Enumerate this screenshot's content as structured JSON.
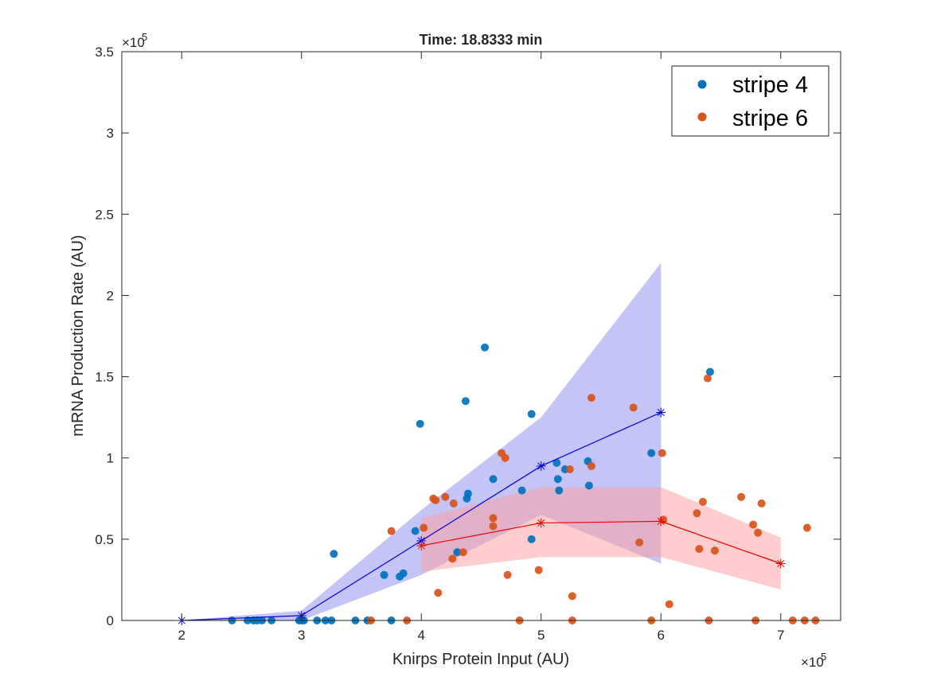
{
  "chart_data": {
    "type": "scatter",
    "title": "Time: 18.8333 min",
    "xlabel": "Knirps Protein Input (AU)",
    "ylabel": "mRNA Production Rate (AU)",
    "x_exponent_label": "×10",
    "x_exponent_power": "5",
    "y_exponent_label": "×10",
    "y_exponent_power": "5",
    "xlim": [
      1.5,
      7.5
    ],
    "ylim": [
      0,
      3.5
    ],
    "xticks": [
      2,
      3,
      4,
      5,
      6,
      7
    ],
    "xtick_labels": [
      "2",
      "3",
      "4",
      "5",
      "6",
      "7"
    ],
    "yticks": [
      0,
      0.5,
      1,
      1.5,
      2,
      2.5,
      3,
      3.5
    ],
    "ytick_labels": [
      "0",
      "0.5",
      "1",
      "1.5",
      "2",
      "2.5",
      "3",
      "3.5"
    ],
    "grid": false,
    "legend_position": "top-right",
    "series": [
      {
        "name": "stripe 4",
        "color": "#0072BD",
        "points": [
          [
            2.42,
            0
          ],
          [
            2.55,
            0
          ],
          [
            2.6,
            0
          ],
          [
            2.63,
            0
          ],
          [
            2.67,
            0
          ],
          [
            2.75,
            0
          ],
          [
            2.98,
            0
          ],
          [
            3.0,
            0
          ],
          [
            3.02,
            0
          ],
          [
            3.13,
            0
          ],
          [
            3.2,
            0
          ],
          [
            3.25,
            0
          ],
          [
            3.45,
            0
          ],
          [
            3.55,
            0
          ],
          [
            3.75,
            0
          ],
          [
            3.27,
            0.41
          ],
          [
            3.69,
            0.28
          ],
          [
            3.82,
            0.27
          ],
          [
            3.85,
            0.29
          ],
          [
            3.95,
            0.55
          ],
          [
            3.99,
            1.21
          ],
          [
            4.37,
            1.35
          ],
          [
            4.38,
            0.75
          ],
          [
            4.39,
            0.78
          ],
          [
            4.3,
            0.42
          ],
          [
            4.53,
            1.68
          ],
          [
            4.6,
            0.87
          ],
          [
            4.84,
            0.8
          ],
          [
            4.92,
            1.27
          ],
          [
            4.92,
            0.5
          ],
          [
            5.13,
            0.97
          ],
          [
            5.14,
            0.87
          ],
          [
            5.15,
            0.8
          ],
          [
            5.2,
            0.93
          ],
          [
            5.39,
            0.98
          ],
          [
            5.4,
            0.83
          ],
          [
            5.92,
            1.03
          ],
          [
            6.41,
            1.53
          ]
        ]
      },
      {
        "name": "stripe 6",
        "color": "#D95319",
        "points": [
          [
            3.58,
            0
          ],
          [
            3.75,
            0.55
          ],
          [
            3.88,
            0
          ],
          [
            4.02,
            0.57
          ],
          [
            4.1,
            0.75
          ],
          [
            4.12,
            0.74
          ],
          [
            4.14,
            0.17
          ],
          [
            4.2,
            0.76
          ],
          [
            4.26,
            0.38
          ],
          [
            4.27,
            0.72
          ],
          [
            4.35,
            0.42
          ],
          [
            4.67,
            1.03
          ],
          [
            4.7,
            1.0
          ],
          [
            4.6,
            0.63
          ],
          [
            4.6,
            0.58
          ],
          [
            4.72,
            0.28
          ],
          [
            4.82,
            0
          ],
          [
            4.98,
            0.31
          ],
          [
            5.26,
            0.15
          ],
          [
            5.26,
            0
          ],
          [
            5.24,
            0.93
          ],
          [
            5.42,
            0.95
          ],
          [
            5.42,
            1.37
          ],
          [
            5.77,
            1.31
          ],
          [
            5.82,
            0.48
          ],
          [
            5.92,
            0
          ],
          [
            6.01,
            1.03
          ],
          [
            6.02,
            0.62
          ],
          [
            6.07,
            0.1
          ],
          [
            6.3,
            0.66
          ],
          [
            6.32,
            0.44
          ],
          [
            6.35,
            0.73
          ],
          [
            6.39,
            1.49
          ],
          [
            6.4,
            0
          ],
          [
            6.45,
            0.43
          ],
          [
            6.67,
            0.76
          ],
          [
            6.77,
            0.59
          ],
          [
            6.79,
            0
          ],
          [
            6.81,
            0.54
          ],
          [
            6.84,
            0.72
          ],
          [
            7.1,
            0
          ],
          [
            7.2,
            0
          ],
          [
            7.22,
            0.57
          ],
          [
            7.29,
            0
          ]
        ]
      }
    ],
    "binned": [
      {
        "name": "stripe 4 binned mean",
        "line_color": "#0000D9",
        "fill_color": "#8A8AF0",
        "x": [
          2,
          3,
          4,
          5,
          6
        ],
        "mean": [
          0,
          0.03,
          0.49,
          0.95,
          1.28
        ],
        "lower": [
          0,
          0,
          0.28,
          0.65,
          0.35
        ],
        "upper": [
          0,
          0.06,
          0.68,
          1.25,
          2.2
        ]
      },
      {
        "name": "stripe 6 binned mean",
        "line_color": "#F00000",
        "fill_color": "#FF9C9C",
        "x": [
          4,
          5,
          6,
          7
        ],
        "mean": [
          0.46,
          0.6,
          0.61,
          0.35
        ],
        "lower": [
          0.3,
          0.39,
          0.39,
          0.19
        ],
        "upper": [
          0.63,
          0.82,
          0.82,
          0.51
        ]
      }
    ]
  }
}
